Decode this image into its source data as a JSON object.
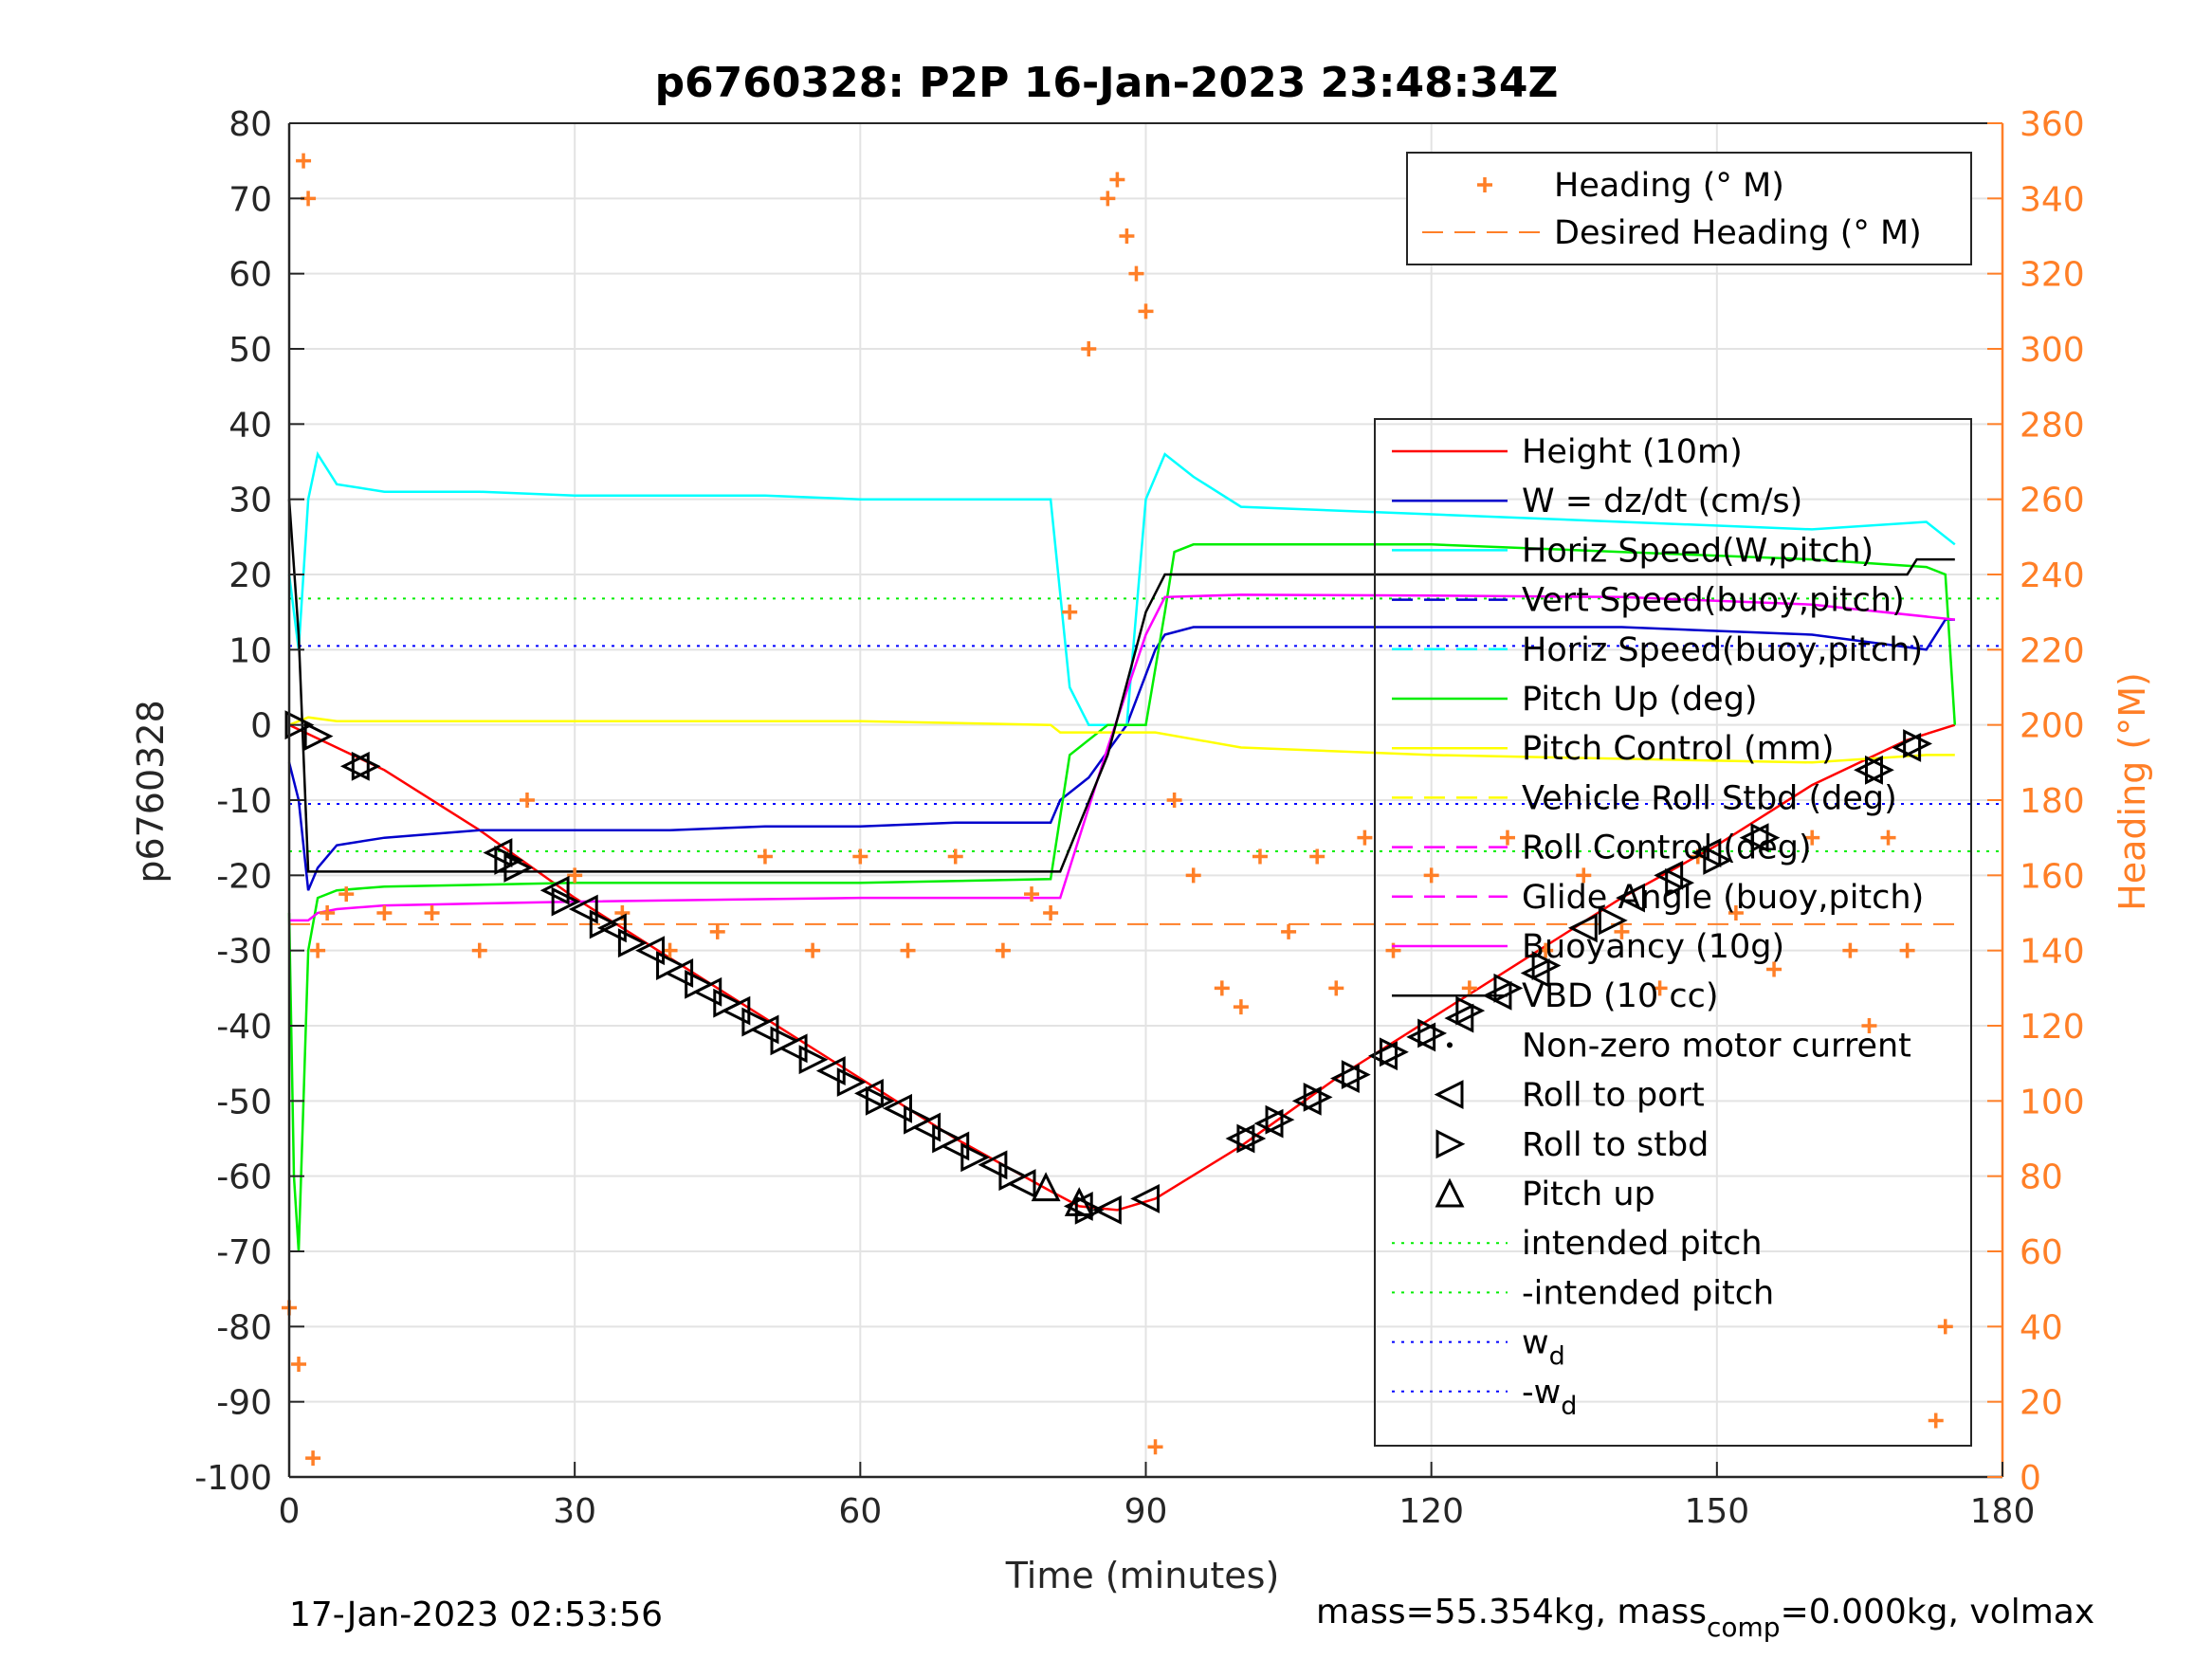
{
  "chart_data": {
    "type": "line",
    "title": "p6760328: P2P 16-Jan-2023 23:48:34Z",
    "xlabel": "Time (minutes)",
    "ylabel": "p6760328",
    "ylabel_right": "Heading (°M)",
    "xlim": [
      0,
      180
    ],
    "ylim": [
      -100,
      80
    ],
    "ylim_right": [
      0,
      360
    ],
    "x_ticks": [
      "0",
      "30",
      "60",
      "90",
      "120",
      "150",
      "180"
    ],
    "y_ticks": [
      "80",
      "70",
      "60",
      "50",
      "40",
      "30",
      "20",
      "10",
      "0",
      "-10",
      "-20",
      "-30",
      "-40",
      "-50",
      "-60",
      "-70",
      "-80",
      "-90",
      "-100"
    ],
    "y_ticks_right": [
      "360",
      "340",
      "320",
      "300",
      "280",
      "260",
      "240",
      "220",
      "200",
      "180",
      "160",
      "140",
      "120",
      "100",
      "80",
      "60",
      "40",
      "20",
      "0"
    ],
    "grid": true,
    "colors": {
      "height": "#ff0000",
      "w": "#0000cc",
      "horiz_w": "#00ffff",
      "pitch_up": "#00ee00",
      "pitch_control": "#ffff00",
      "buoyancy": "#ff00ff",
      "vbd": "#000000",
      "heading": "#ff7f27",
      "intended_pitch": "#00ee00",
      "wd": "#0000ff"
    },
    "legend_heading": {
      "placement": "top-right",
      "entries": [
        "Heading (° M)",
        "Desired Heading (° M)"
      ]
    },
    "legend_main": {
      "placement": "right",
      "entries": [
        {
          "label": "Height (10m)",
          "marker": "line",
          "color": "#ff0000"
        },
        {
          "label": "W = dz/dt (cm/s)",
          "marker": "line",
          "color": "#0000cc"
        },
        {
          "label": "Horiz Speed(W,pitch)",
          "marker": "line",
          "color": "#00ffff"
        },
        {
          "label": "Vert Speed(buoy,pitch)",
          "marker": "dash",
          "color": "#0000cc"
        },
        {
          "label": "Horiz Speed(buoy,pitch)",
          "marker": "dash",
          "color": "#00ffff"
        },
        {
          "label": "Pitch Up (deg)",
          "marker": "line",
          "color": "#00ee00"
        },
        {
          "label": "Pitch Control (mm)",
          "marker": "line",
          "color": "#ffff00"
        },
        {
          "label": "Vehicle Roll Stbd (deg)",
          "marker": "dash",
          "color": "#ffff00"
        },
        {
          "label": "Roll Control (deg)",
          "marker": "dash",
          "color": "#ff00ff"
        },
        {
          "label": "Glide Angle (buoy,pitch)",
          "marker": "dash",
          "color": "#ff00ff"
        },
        {
          "label": "Buoyancy (10g)",
          "marker": "line",
          "color": "#ff00ff"
        },
        {
          "label": "VBD (10 cc)",
          "marker": "line",
          "color": "#000000"
        },
        {
          "label": "Non-zero motor current",
          "marker": "dot",
          "color": "#000000"
        },
        {
          "label": "Roll to port",
          "marker": "tri-left",
          "color": "#000000"
        },
        {
          "label": "Roll to stbd",
          "marker": "tri-right",
          "color": "#000000"
        },
        {
          "label": "Pitch up",
          "marker": "tri-up",
          "color": "#000000"
        },
        {
          "label": "intended pitch",
          "marker": "dotted",
          "color": "#00ee00"
        },
        {
          "label": "-intended pitch",
          "marker": "dotted",
          "color": "#00ee00"
        },
        {
          "label": "w",
          "sub": "d",
          "marker": "dotted",
          "color": "#0000ff"
        },
        {
          "label": "-w",
          "sub": "d",
          "marker": "dotted",
          "color": "#0000ff"
        }
      ]
    },
    "series": [
      {
        "name": "Height (10m)",
        "x": [
          0,
          10,
          20,
          30,
          40,
          50,
          60,
          70,
          80,
          83,
          87,
          91,
          100,
          110,
          120,
          130,
          140,
          150,
          160,
          170,
          175
        ],
        "values": [
          0,
          -6,
          -14,
          -23,
          -31,
          -39,
          -47,
          -55,
          -62,
          -64,
          -64.5,
          -63,
          -56,
          -47,
          -39,
          -31,
          -23,
          -16,
          -8,
          -2,
          0
        ]
      },
      {
        "name": "W = dz/dt (cm/s)",
        "x": [
          0,
          1,
          2,
          3,
          5,
          10,
          20,
          30,
          40,
          50,
          60,
          70,
          80,
          81,
          84,
          88,
          91,
          92,
          95,
          100,
          120,
          140,
          160,
          172,
          174,
          175
        ],
        "values": [
          -5,
          -10,
          -22,
          -19,
          -16,
          -15,
          -14,
          -14,
          -14,
          -13.5,
          -13.5,
          -13,
          -13,
          -10,
          -7,
          0,
          10,
          12,
          13,
          13,
          13,
          13,
          12,
          10,
          14,
          14
        ]
      },
      {
        "name": "Horiz Speed(W,pitch)",
        "x": [
          0,
          1,
          2,
          3,
          5,
          10,
          20,
          30,
          40,
          50,
          60,
          70,
          80,
          82,
          84,
          86,
          88,
          90,
          92,
          95,
          100,
          120,
          140,
          160,
          172,
          175
        ],
        "values": [
          20,
          10,
          30,
          36,
          32,
          31,
          31,
          30.5,
          30.5,
          30.5,
          30,
          30,
          30,
          5,
          0,
          0,
          0,
          30,
          36,
          33,
          29,
          28,
          27,
          26,
          27,
          24
        ]
      },
      {
        "name": "Pitch Up (deg)",
        "x": [
          0,
          0.5,
          1,
          1.5,
          2,
          3,
          5,
          10,
          30,
          60,
          80,
          82,
          86,
          90,
          92,
          93,
          95,
          100,
          120,
          140,
          160,
          172,
          174,
          175
        ],
        "values": [
          -25,
          -60,
          -70,
          -50,
          -30,
          -23,
          -22,
          -21.5,
          -21,
          -21,
          -20.5,
          -4,
          0,
          0,
          15,
          23,
          24,
          24,
          24,
          23,
          22,
          21,
          20,
          0
        ]
      },
      {
        "name": "Pitch Control (mm)",
        "x": [
          0,
          2,
          5,
          20,
          40,
          60,
          80,
          81,
          90,
          91,
          100,
          120,
          140,
          160,
          172,
          175
        ],
        "values": [
          0,
          1,
          0.5,
          0.5,
          0.5,
          0.5,
          0,
          -1,
          -1,
          -1,
          -3,
          -4,
          -4.5,
          -5,
          -4,
          -4
        ]
      },
      {
        "name": "Buoyancy (10g)",
        "x": [
          0,
          1,
          2,
          3,
          5,
          10,
          30,
          60,
          80,
          81,
          86,
          90,
          92,
          100,
          120,
          140,
          160,
          175
        ],
        "values": [
          -26,
          -26,
          -26,
          -25,
          -24.5,
          -24,
          -23.5,
          -23,
          -23,
          -23,
          -3,
          12,
          17,
          17.3,
          17.2,
          17,
          16,
          14
        ]
      },
      {
        "name": "VBD (10 cc)",
        "x": [
          0,
          1,
          2,
          3,
          10,
          30,
          60,
          80,
          81,
          86,
          90,
          92,
          100,
          120,
          140,
          160,
          170,
          171,
          175
        ],
        "values": [
          30,
          12,
          -19.5,
          -19.5,
          -19.5,
          -19.5,
          -19.5,
          -19.5,
          -19.5,
          -4,
          15,
          20,
          20,
          20,
          20,
          20,
          20,
          22,
          22
        ]
      },
      {
        "name": "Heading (° M)",
        "axis": "right",
        "x": [
          0,
          1,
          1.5,
          2,
          2.5,
          3,
          4,
          6,
          10,
          15,
          20,
          25,
          30,
          35,
          40,
          45,
          50,
          55,
          60,
          65,
          70,
          75,
          78,
          80,
          82,
          84,
          86,
          87,
          88,
          89,
          90,
          91,
          93,
          95,
          98,
          100,
          102,
          105,
          108,
          110,
          113,
          116,
          120,
          124,
          128,
          132,
          136,
          140,
          144,
          148,
          152,
          156,
          160,
          164,
          166,
          168,
          170,
          172,
          173,
          174
        ],
        "values": [
          45,
          30,
          350,
          340,
          5,
          140,
          150,
          155,
          150,
          150,
          140,
          180,
          160,
          150,
          140,
          145,
          165,
          140,
          165,
          140,
          165,
          140,
          155,
          150,
          230,
          300,
          340,
          345,
          330,
          320,
          310,
          8,
          180,
          160,
          130,
          125,
          165,
          145,
          165,
          130,
          170,
          140,
          160,
          130,
          170,
          140,
          160,
          145,
          130,
          165,
          150,
          135,
          170,
          140,
          120,
          170,
          140,
          350,
          15,
          40
        ]
      },
      {
        "name": "Desired Heading (° M)",
        "axis": "right",
        "x": [
          0,
          175
        ],
        "values": [
          147,
          147
        ]
      }
    ],
    "reference_lines": [
      {
        "name": "intended pitch",
        "value": 16.8
      },
      {
        "name": "-intended pitch",
        "value": -16.8
      },
      {
        "name": "wd",
        "value": 10.5
      },
      {
        "name": "-wd",
        "value": -10.5
      }
    ],
    "markers": {
      "roll_to_port": {
        "x": [
          7,
          22,
          28,
          31,
          34,
          38,
          41,
          44,
          47,
          50,
          53,
          57,
          61,
          64,
          67,
          70,
          74,
          77,
          83,
          86,
          90,
          100,
          103,
          107,
          111,
          115,
          119,
          123,
          127,
          131,
          136,
          141,
          145,
          149,
          154,
          166,
          170
        ],
        "y": [
          -5.5,
          -17,
          -22,
          -24.5,
          -27,
          -30,
          -33,
          -35.5,
          -38,
          -40.5,
          -43,
          -46,
          -49,
          -51,
          -53.5,
          -56,
          -58.5,
          -61,
          -64,
          -64.5,
          -63,
          -55,
          -53,
          -50,
          -47,
          -44,
          -41.5,
          -39,
          -36,
          -33,
          -27,
          -23,
          -20,
          -17,
          -15,
          -6,
          -3
        ]
      },
      "roll_to_stbd": {
        "x": [
          1,
          3,
          8,
          23,
          24,
          29,
          33,
          36,
          40,
          43,
          46,
          49,
          52,
          55,
          59,
          62,
          66,
          69,
          72,
          76,
          84,
          101,
          104,
          108,
          112,
          116,
          120,
          124,
          128,
          132,
          139,
          146,
          150,
          155,
          167,
          171
        ],
        "y": [
          0,
          -1.5,
          -5.5,
          -18,
          -19,
          -23.5,
          -26.5,
          -29,
          -32,
          -34.5,
          -37,
          -39.5,
          -42,
          -44.5,
          -47.5,
          -50,
          -52.5,
          -55,
          -57.5,
          -60,
          -64.5,
          -55,
          -52.5,
          -49.5,
          -46.5,
          -43.5,
          -41,
          -38,
          -35,
          -32,
          -26,
          -21,
          -18,
          -15,
          -6,
          -2.5
        ]
      },
      "pitch_up": {
        "x": [
          79.5,
          83
        ],
        "y": [
          -61.5,
          -63.5
        ]
      }
    }
  },
  "footer": {
    "date": "17-Jan-2023 02:53:56",
    "mass_prefix": "mass=55.354kg, mass",
    "mass_sub": "comp",
    "mass_suffix": "=0.000kg, volmax"
  }
}
